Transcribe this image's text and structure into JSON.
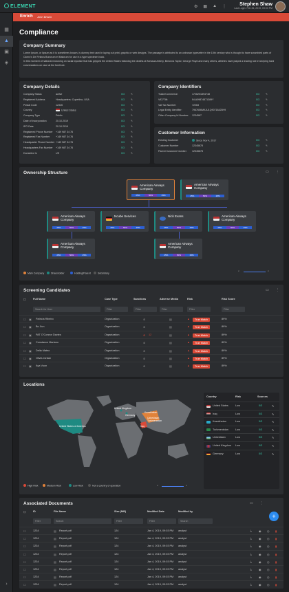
{
  "app": {
    "logo": "ELEMENT",
    "user_name": "Stephen Shaw",
    "last_login": "Last Login: Feb 26, 2019, 09:03 PM"
  },
  "breadcrumb": {
    "section": "Enrich",
    "item": "John Brown"
  },
  "page_title": "Compliance",
  "summary": {
    "title": "Company Summary",
    "text": "Lorem Ipsum, or lipsum as it is sometimes known, is dummy text used in laying out print, graphic or web designs. The passage is attributed to an unknown typesetter in the 15th century who is thought to have scrambled parts of Cicero's De Finibus Bonorum et Malorum for use in a type specimen book.",
    "text2": "In this moment of national reckoning on racial injustice that has gripped the United States following the deaths of Ahmaud Arbery, Breonna Taylor, George Floyd and many others, athletes have played a leading role in keeping hard conversations on race at the forefront."
  },
  "details": {
    "title": "Company Details",
    "rows": [
      {
        "k": "Company Status",
        "v": "active"
      },
      {
        "k": "Registered Address",
        "v": "Headquarters: Cupertino, USA"
      },
      {
        "k": "Postal Code",
        "v": "12345"
      },
      {
        "k": "Country",
        "v": "United States"
      },
      {
        "k": "Company Type",
        "v": "Public"
      },
      {
        "k": "Date of Incorporation",
        "v": "20.10.2019"
      },
      {
        "k": "IPO Date",
        "v": "20.10.2019"
      },
      {
        "k": "Registered Phone Number",
        "v": "+149 987 34 76"
      },
      {
        "k": "Registered Fax Number",
        "v": "+149 987 34 76"
      },
      {
        "k": "Headquarter Phone Number",
        "v": "+149 987 34 76"
      },
      {
        "k": "Headquarters Fax Number",
        "v": "+149 987 34 76"
      },
      {
        "k": "Domiciled In",
        "v": "US"
      }
    ]
  },
  "identifiers": {
    "title": "Company Identifiers",
    "rows": [
      {
        "k": "Trade/Commerce:",
        "v": "1726201894748"
      },
      {
        "k": "VAT/TIN:",
        "v": "IN-A09874871389Y"
      },
      {
        "k": "Vat Tax Number:",
        "v": "72263"
      },
      {
        "k": "Legal Entity Identifier:",
        "v": "7967656MKJU1Q90718425H9"
      },
      {
        "k": "Other Company Id Number:",
        "v": "1234567"
      }
    ]
  },
  "customer": {
    "title": "Customer Information",
    "rows": [
      {
        "k": "Existing Customer",
        "v": "Since Nov 4, 2017"
      },
      {
        "k": "Customer Number",
        "v": "12345678"
      },
      {
        "k": "Parent Customer Number",
        "v": "12345678"
      }
    ]
  },
  "count_label": "0/3",
  "ownership": {
    "title": "Ownership Structure",
    "top": [
      {
        "name": "American Airways Company"
      },
      {
        "name": "American Airways Company"
      }
    ],
    "mid": [
      {
        "name": "American Airways Company"
      },
      {
        "name": "Ncube Services"
      },
      {
        "name": "Nick Evans"
      },
      {
        "name": "American Airways Company"
      }
    ],
    "low": [
      {
        "name": "American Airways Company"
      },
      {
        "name": "American Airways Company"
      }
    ],
    "bar": [
      "25%",
      "50%",
      "25%"
    ],
    "legend": [
      "Main Company",
      "Shareholder",
      "Holding/Parent",
      "Subsidiary"
    ]
  },
  "screening": {
    "title": "Screening Candidates",
    "cols": [
      "Full Name",
      "Case Type",
      "Sanctions",
      "Adverse Media",
      "Risk",
      "Risk Score"
    ],
    "search": "Search for User",
    "filter": "Filter",
    "rows": [
      {
        "name": "Patricia Ribeiro",
        "type": "Organization",
        "risk": "True Match",
        "score": "89%"
      },
      {
        "name": "Bo Xun",
        "type": "Organization",
        "risk": "True Match",
        "score": "89%"
      },
      {
        "name": "PAT O'Connor Davies",
        "type": "Organization",
        "sanc": "12",
        "risk": "True Match",
        "score": "89%"
      },
      {
        "name": "Constance Mariano",
        "type": "Organization",
        "risk": "True Match",
        "score": "89%"
      },
      {
        "name": "Delia Mateo",
        "type": "Organization",
        "risk": "True Match",
        "score": "89%"
      },
      {
        "name": "Olivia Jordan",
        "type": "Organization",
        "risk": "True Match",
        "score": "89%"
      },
      {
        "name": "Aya Vuon",
        "type": "Organization",
        "risk": "True Match",
        "score": "89%"
      }
    ]
  },
  "locations": {
    "title": "Locations",
    "cols": [
      "Country",
      "Risk",
      "Sources"
    ],
    "rows": [
      {
        "c": "United States",
        "r": "Low"
      },
      {
        "c": "Iraq",
        "r": "Low"
      },
      {
        "c": "Kazakhstan",
        "r": "Low"
      },
      {
        "c": "Turkmenistan",
        "r": "Low"
      },
      {
        "c": "Uzbekistan",
        "r": "Low"
      },
      {
        "c": "United Kingdom",
        "r": "Low"
      },
      {
        "c": "Germany",
        "r": "Low"
      }
    ],
    "map_labels": [
      "United States of America",
      "United Kingdom",
      "Germany",
      "Kazakhstan",
      "Uzbekistan",
      "Turkmenistan",
      "Iraq"
    ],
    "legend": [
      "High Risk",
      "Medium Risk",
      "Low Risk",
      "Not a country of operation"
    ]
  },
  "documents": {
    "title": "Associated Documents",
    "cols": [
      "ID",
      "File Name",
      "Size (MB)",
      "Modified Date",
      "Modified by"
    ],
    "search": "Search",
    "filter": "Filter",
    "rows": [
      {
        "id": "1234",
        "f": "Report.pdf",
        "s": "124",
        "d": "Jan 4, 2019, 09:03 PM",
        "m": "analyst"
      },
      {
        "id": "1234",
        "f": "Report.pdf",
        "s": "124",
        "d": "Jan 4, 2019, 09:03 PM",
        "m": "analyst"
      },
      {
        "id": "1234",
        "f": "Report.pdf",
        "s": "124",
        "d": "Jan 4, 2019, 09:03 PM",
        "m": "analyst"
      },
      {
        "id": "1234",
        "f": "Report.pdf",
        "s": "124",
        "d": "Jan 4, 2019, 09:03 PM",
        "m": "analyst"
      },
      {
        "id": "1234",
        "f": "Report.pdf",
        "s": "124",
        "d": "Jan 4, 2019, 09:03 PM",
        "m": "analyst"
      },
      {
        "id": "1234",
        "f": "Report.pdf",
        "s": "124",
        "d": "Jan 4, 2019, 09:03 PM",
        "m": "analyst"
      },
      {
        "id": "1234",
        "f": "Report.pdf",
        "s": "124",
        "d": "Jan 4, 2019, 09:03 PM",
        "m": "analyst"
      },
      {
        "id": "1234",
        "f": "Report.pdf",
        "s": "124",
        "d": "Jan 4, 2019, 09:03 PM",
        "m": "analyst"
      }
    ]
  }
}
